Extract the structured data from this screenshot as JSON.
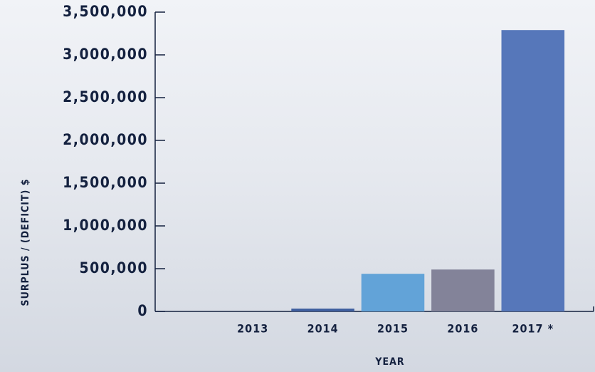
{
  "chart_data": {
    "type": "bar",
    "x_label": "YEAR",
    "y_label": "SURPLUS / (DEFICIT) $",
    "categories": [
      "2013",
      "2014",
      "2015",
      "2016",
      "2017 *"
    ],
    "values": [
      0,
      33000,
      440000,
      490000,
      3290000
    ],
    "colors": [
      "#4a6aa8",
      "#3f5f9f",
      "#62a3d8",
      "#838399",
      "#5677ba"
    ],
    "ylim": [
      0,
      3500000
    ],
    "yticks": [
      0,
      {
        "value": 500000,
        "label": "500,000"
      },
      {
        "value": 1000000,
        "label": "1,000,000"
      },
      {
        "value": 1500000,
        "label": "1,500,000"
      },
      {
        "value": 2000000,
        "label": "2,000,000"
      },
      {
        "value": 2500000,
        "label": "2,500,000"
      },
      {
        "value": 3000000,
        "label": "3,000,000"
      },
      {
        "value": 3500000,
        "label": "3,500,000"
      }
    ]
  }
}
